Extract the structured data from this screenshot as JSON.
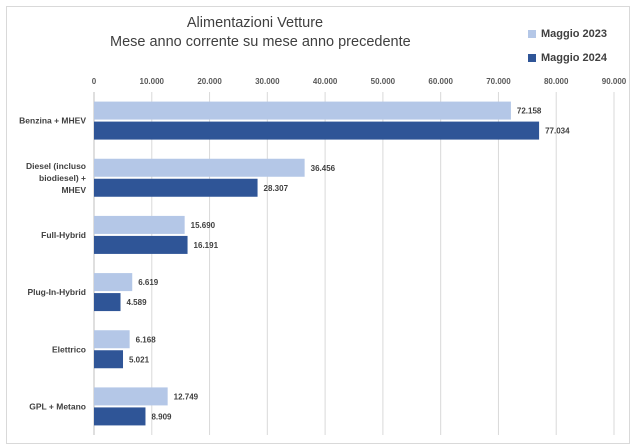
{
  "chart_data": {
    "type": "bar",
    "orientation": "horizontal",
    "title": "Alimentazioni Vetture",
    "subtitle": "Mese anno corrente su mese anno precedente",
    "categories": [
      "Benzina + MHEV",
      "Diesel (incluso biodiesel) + MHEV",
      "Full-Hybrid",
      "Plug-In-Hybrid",
      "Elettrico",
      "GPL + Metano"
    ],
    "category_lines": [
      [
        "Benzina + MHEV"
      ],
      [
        "Diesel (incluso",
        "biodiesel) +",
        "MHEV"
      ],
      [
        "Full-Hybrid"
      ],
      [
        "Plug-In-Hybrid"
      ],
      [
        "Elettrico"
      ],
      [
        "GPL + Metano"
      ]
    ],
    "series": [
      {
        "name": "Maggio 2023",
        "color": "#b4c7e7",
        "values": [
          72158,
          36456,
          15690,
          6619,
          6168,
          12749
        ],
        "labels": [
          "72.158",
          "36.456",
          "15.690",
          "6.619",
          "6.168",
          "12.749"
        ]
      },
      {
        "name": "Maggio 2024",
        "color": "#2f5597",
        "values": [
          77034,
          28307,
          16191,
          4589,
          5021,
          8909
        ],
        "labels": [
          "77.034",
          "28.307",
          "16.191",
          "4.589",
          "5.021",
          "8.909"
        ]
      }
    ],
    "xlim": [
      0,
      90000
    ],
    "ticks": [
      0,
      10000,
      20000,
      30000,
      40000,
      50000,
      60000,
      70000,
      80000,
      90000
    ],
    "tick_labels": [
      "0",
      "10.000",
      "20.000",
      "30.000",
      "40.000",
      "50.000",
      "60.000",
      "70.000",
      "80.000",
      "90.000"
    ],
    "axis_position": "top",
    "grid": true,
    "legend_position": "top-right",
    "xlabel": "",
    "ylabel": ""
  }
}
